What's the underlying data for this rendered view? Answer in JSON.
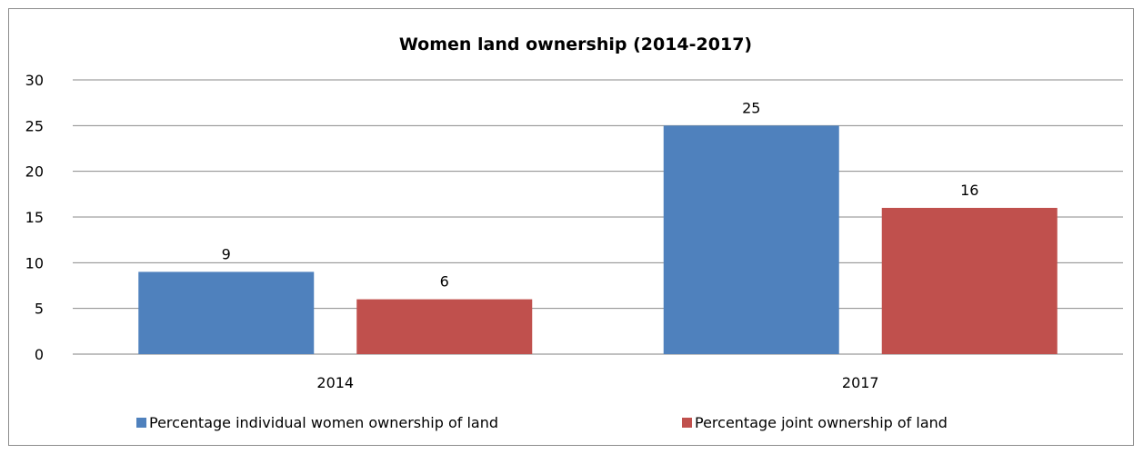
{
  "chart_data": {
    "type": "bar",
    "title": "Women land ownership (2014-2017)",
    "categories": [
      "2014",
      "2017"
    ],
    "series": [
      {
        "name": "Percentage individual women ownership of land",
        "color": "#4f81bd",
        "values": [
          9,
          25
        ]
      },
      {
        "name": "Percentage joint ownership of land",
        "color": "#c0504d",
        "values": [
          6,
          16
        ]
      }
    ],
    "ylim": [
      0,
      30
    ],
    "yticks": [
      0,
      5,
      10,
      15,
      20,
      25,
      30
    ],
    "grid": true,
    "legend": "bottom",
    "xlabel": "",
    "ylabel": ""
  }
}
